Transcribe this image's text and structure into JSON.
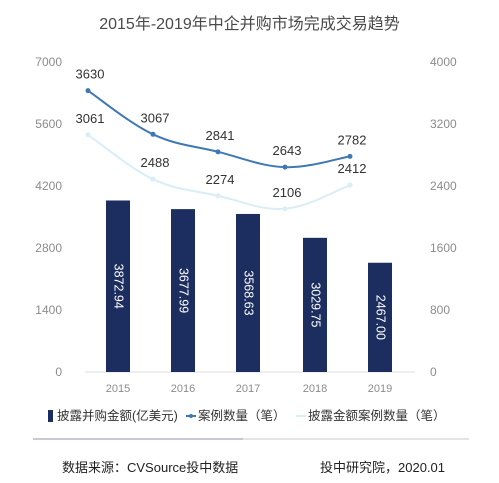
{
  "chart_data": {
    "type": "bar",
    "title": "2015年-2019年中企并购市场完成交易趋势",
    "categories": [
      "2015",
      "2016",
      "2017",
      "2018",
      "2019"
    ],
    "series": [
      {
        "name": "披露并购金额(亿美元)",
        "kind": "bar",
        "axis": "left",
        "color": "#1c2d5f",
        "values": [
          3872.94,
          3677.99,
          3568.63,
          3029.75,
          2467.0
        ],
        "labels": [
          "3872.94",
          "3677.99",
          "3568.63",
          "3029.75",
          "2467.00"
        ]
      },
      {
        "name": "案例数量（笔）",
        "kind": "line",
        "axis": "right",
        "color": "#3f78b5",
        "values": [
          3630,
          3067,
          2841,
          2643,
          2782
        ]
      },
      {
        "name": "披露金额案例数量（笔）",
        "kind": "line",
        "axis": "right",
        "color": "#d9eef5",
        "values": [
          3061,
          2488,
          2274,
          2106,
          2412
        ]
      }
    ],
    "y_left": {
      "ticks": [
        "0",
        "1400",
        "2800",
        "4200",
        "5600",
        "7000"
      ],
      "range": [
        0,
        7000
      ]
    },
    "y_right": {
      "ticks": [
        "0",
        "800",
        "1600",
        "2400",
        "3200",
        "4000"
      ],
      "range": [
        0,
        4000
      ]
    },
    "grid": false,
    "legend_position": "bottom"
  },
  "footer": {
    "source": "数据来源：CVSource投中数据",
    "credit": "投中研究院，2020.01"
  }
}
